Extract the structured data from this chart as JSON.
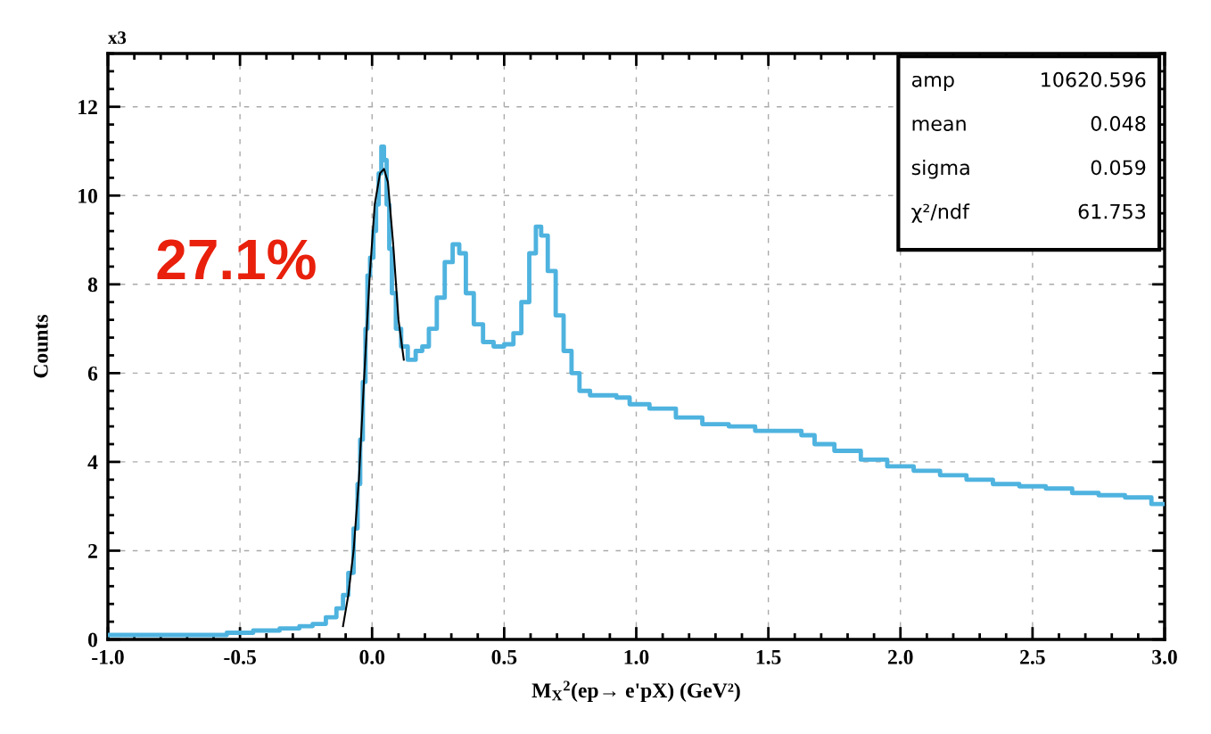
{
  "chart_data": {
    "type": "step",
    "xlabel": "M$_{X}$$^{2}$(ep→ e'pX) (GeV²)",
    "ylabel": "Counts",
    "xlim": [
      -1.0,
      3.0
    ],
    "xticks": [
      {
        "value": -1.0,
        "label": "-1.0"
      },
      {
        "value": -0.5,
        "label": "-0.5"
      },
      {
        "value": 0.0,
        "label": "0.0"
      },
      {
        "value": 0.5,
        "label": "0.5"
      },
      {
        "value": 1.0,
        "label": "1.0"
      },
      {
        "value": 1.5,
        "label": "1.5"
      },
      {
        "value": 2.0,
        "label": "2.0"
      },
      {
        "value": 2.5,
        "label": "2.5"
      },
      {
        "value": 3.0,
        "label": "3.0"
      }
    ],
    "ylim": [
      0,
      13.2
    ],
    "yticks": [
      0,
      2,
      4,
      6,
      8,
      10,
      12
    ],
    "grid": true,
    "series": [
      {
        "color": "#4fb3df",
        "x": [
          -1.0,
          -0.8,
          -0.6,
          -0.5,
          -0.4,
          -0.3,
          -0.25,
          -0.2,
          -0.15,
          -0.12,
          -0.1,
          -0.08,
          -0.06,
          -0.05,
          -0.04,
          -0.03,
          -0.02,
          -0.015,
          0.0,
          0.01,
          0.02,
          0.03,
          0.04,
          0.05,
          0.06,
          0.07,
          0.08,
          0.1,
          0.12,
          0.15,
          0.18,
          0.2,
          0.23,
          0.26,
          0.29,
          0.32,
          0.34,
          0.37,
          0.4,
          0.44,
          0.48,
          0.52,
          0.55,
          0.58,
          0.61,
          0.63,
          0.65,
          0.68,
          0.71,
          0.74,
          0.77,
          0.8,
          0.85,
          0.9,
          0.95,
          1.0,
          1.1,
          1.2,
          1.3,
          1.4,
          1.5,
          1.6,
          1.65,
          1.7,
          1.8,
          1.9,
          2.0,
          2.1,
          2.2,
          2.3,
          2.4,
          2.5,
          2.6,
          2.7,
          2.8,
          2.9,
          3.0
        ],
        "values": [
          0.1,
          0.1,
          0.1,
          0.15,
          0.2,
          0.25,
          0.3,
          0.35,
          0.5,
          0.7,
          1.0,
          1.5,
          2.5,
          3.5,
          4.5,
          5.8,
          7.0,
          8.2,
          8.6,
          9.2,
          9.8,
          10.5,
          11.1,
          10.8,
          9.8,
          8.8,
          7.8,
          7.0,
          6.6,
          6.3,
          6.5,
          6.6,
          7.0,
          7.7,
          8.5,
          8.9,
          8.7,
          7.8,
          7.1,
          6.7,
          6.6,
          6.65,
          6.9,
          7.6,
          8.7,
          9.3,
          9.1,
          8.3,
          7.3,
          6.5,
          6.0,
          5.6,
          5.5,
          5.5,
          5.45,
          5.3,
          5.2,
          5.0,
          4.85,
          4.8,
          4.7,
          4.7,
          4.6,
          4.4,
          4.25,
          4.05,
          3.9,
          3.8,
          3.7,
          3.6,
          3.5,
          3.45,
          3.4,
          3.3,
          3.25,
          3.2,
          3.05
        ]
      },
      {
        "type": "line",
        "color": "#000000",
        "x": [
          -0.11,
          -0.09,
          -0.07,
          -0.05,
          -0.03,
          -0.01,
          0.01,
          0.03,
          0.045,
          0.06,
          0.08,
          0.1,
          0.12
        ],
        "values": [
          0.3,
          1.0,
          2.0,
          3.6,
          5.9,
          8.1,
          9.8,
          10.5,
          10.6,
          10.3,
          8.9,
          7.2,
          6.3
        ]
      }
    ],
    "annotations": [
      "x3",
      "27.1%",
      "amp",
      "10620.596",
      "mean",
      "0.048",
      "sigma",
      "0.059",
      "χ²/ndf",
      "61.753"
    ]
  }
}
